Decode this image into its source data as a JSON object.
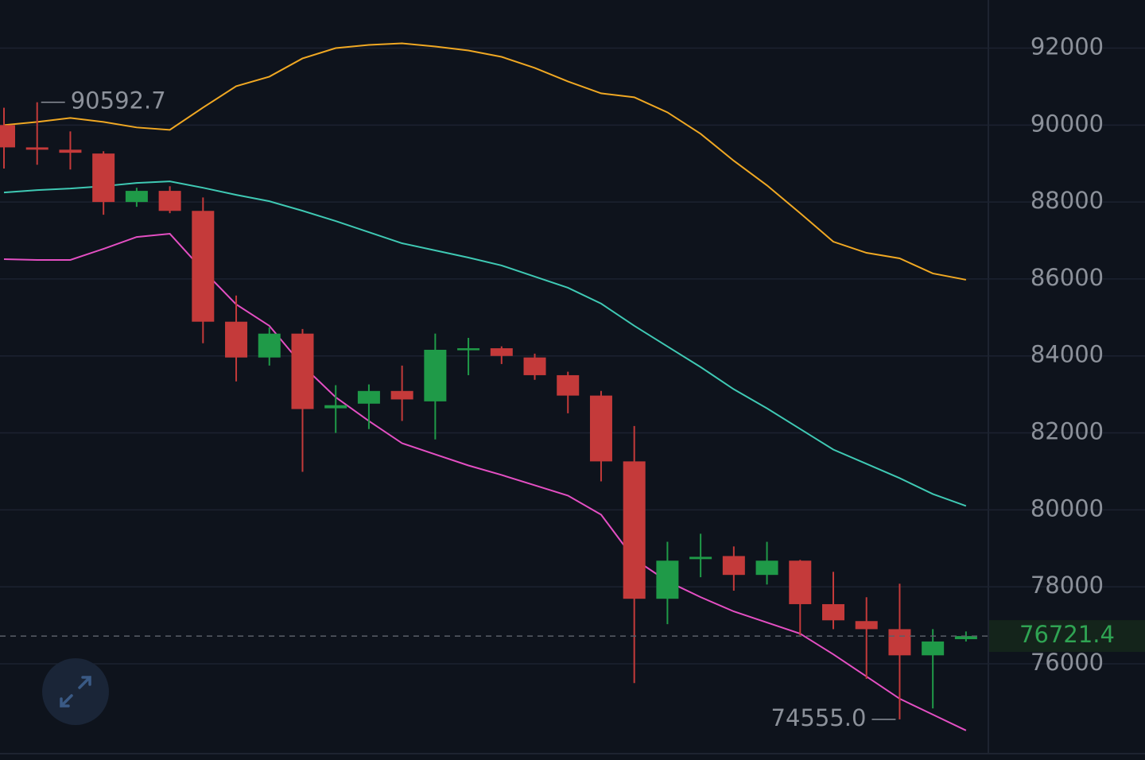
{
  "chart_data": {
    "type": "candlestick",
    "open": [
      90000,
      89420,
      89360,
      89260,
      88000,
      88290,
      87770,
      84890,
      83960,
      84580,
      82640,
      82760,
      83090,
      82820,
      84160,
      84200,
      83960,
      83500,
      82970,
      81260,
      77690,
      78720,
      78800,
      78310,
      78680,
      77550,
      77110,
      76900,
      76220,
      76640
    ],
    "high": [
      90450,
      90592.7,
      89835,
      89320,
      88370,
      88410,
      88120,
      85570,
      84740,
      84700,
      83240,
      83260,
      83750,
      84580,
      84470,
      84250,
      84060,
      83590,
      83090,
      82180,
      79170,
      79380,
      79050,
      79170,
      78700,
      78390,
      77730,
      78080,
      76900,
      76840
    ],
    "low": [
      88870,
      88969,
      88845,
      87670,
      87876,
      87710,
      84330,
      83340,
      83750,
      80990,
      82000,
      82100,
      82310,
      81830,
      83500,
      83790,
      83380,
      82510,
      80740,
      75500,
      77030,
      78250,
      77900,
      78060,
      76740,
      76900,
      75610,
      74555,
      74840,
      76580
    ],
    "close": [
      89420,
      89360,
      89280,
      88000,
      88290,
      87770,
      84890,
      83960,
      84580,
      82620,
      82720,
      83090,
      82870,
      84160,
      84200,
      84000,
      83500,
      82970,
      81260,
      77690,
      78680,
      78780,
      78310,
      78680,
      77550,
      77130,
      76900,
      76220,
      76580,
      76721.4
    ],
    "up_color": "#1f9a48",
    "down_color": "#c43a3a",
    "series": [
      {
        "color": "#f0a823",
        "values": [
          90000,
          90082,
          90185,
          90082,
          89938,
          89876,
          90454,
          91010,
          91258,
          91732,
          92000,
          92082,
          92124,
          92041,
          91938,
          91773,
          91485,
          91134,
          90825,
          90722,
          90330,
          89773,
          89072,
          88433,
          87711,
          86969,
          86680,
          86536,
          86144,
          85979
        ]
      },
      {
        "color": "#3fc9b4",
        "values": [
          88247,
          88309,
          88350,
          88412,
          88495,
          88536,
          88371,
          88186,
          88020,
          87773,
          87505,
          87216,
          86928,
          86742,
          86557,
          86351,
          86062,
          85773,
          85361,
          84783,
          84247,
          83711,
          83134,
          82639,
          82103,
          81567,
          81196,
          80825,
          80412,
          80103
        ]
      },
      {
        "color": "#e44fc3",
        "values": [
          86515,
          86495,
          86495,
          86783,
          87092,
          87175,
          86226,
          85340,
          84783,
          83752,
          82927,
          82309,
          81732,
          81443,
          81154,
          80907,
          80639,
          80371,
          79876,
          78722,
          78144,
          77732,
          77361,
          77072,
          76783,
          76247,
          75670,
          75092,
          74680,
          74268
        ]
      }
    ],
    "ylim": [
      73500,
      93250
    ],
    "yticks": [
      76000,
      78000,
      80000,
      82000,
      84000,
      86000,
      88000,
      90000,
      92000
    ],
    "grid": true,
    "last_price": 76721.4,
    "max_label": {
      "value": 90592.7,
      "label": "90592.7"
    },
    "min_label": {
      "value": 74555,
      "label": "74555.0"
    }
  }
}
